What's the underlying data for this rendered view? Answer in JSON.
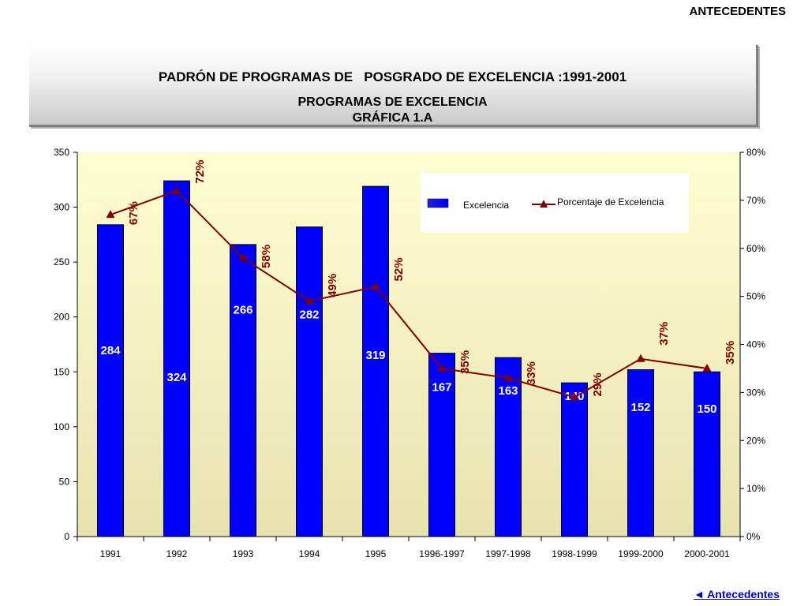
{
  "header": {
    "section_label": "ANTECEDENTES"
  },
  "title": {
    "line1": "PADRÓN DE PROGRAMAS DE   POSGRADO DE EXCELENCIA :1991-2001",
    "line2a": "PROGRAMAS DE EXCELENCIA",
    "line2b": "GRÁFICA  1.A"
  },
  "colors": {
    "bar": "#0000ff",
    "line": "#800000",
    "plot_bg_top": "#fffed0",
    "plot_bg_bottom": "#e8e2b0"
  },
  "chart_data": {
    "type": "bar",
    "categories": [
      "1991",
      "1992",
      "1993",
      "1994",
      "1995",
      "1996-1997",
      "1997-1998",
      "1998-1999",
      "1999-2000",
      "2000-2001"
    ],
    "series": [
      {
        "name": "Excelencia",
        "type": "bar",
        "axis": "left",
        "values": [
          284,
          324,
          266,
          282,
          319,
          167,
          163,
          140,
          152,
          150
        ],
        "labels": [
          "284",
          "324",
          "266",
          "282",
          "319",
          "167",
          "163",
          "140",
          "152",
          "150"
        ]
      },
      {
        "name": "Porcentaje de Excelencia",
        "type": "line",
        "axis": "right",
        "values": [
          67,
          72,
          58,
          49,
          52,
          35,
          33,
          29,
          37,
          35
        ],
        "labels": [
          "67%",
          "72%",
          "58%",
          "49%",
          "52%",
          "35%",
          "33%",
          "29%",
          "37%",
          "35%"
        ]
      }
    ],
    "ylim_left": [
      0,
      350
    ],
    "yticks_left": [
      "0",
      "50",
      "100",
      "150",
      "200",
      "250",
      "300",
      "350"
    ],
    "ylim_right": [
      0,
      80
    ],
    "yticks_right": [
      "0%",
      "10%",
      "20%",
      "30%",
      "40%",
      "50%",
      "60%",
      "70%",
      "80%"
    ],
    "legend_position": "top-right"
  },
  "footer": {
    "nav_link": "◄ Antecedentes"
  }
}
